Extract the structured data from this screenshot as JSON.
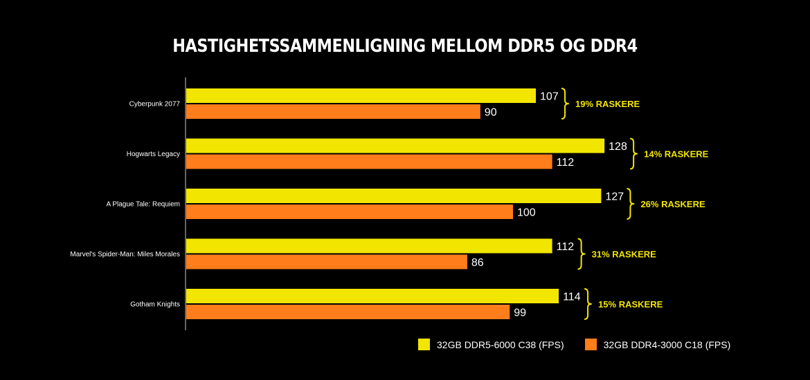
{
  "chart_data": {
    "type": "bar",
    "orientation": "horizontal",
    "title": "HASTIGHETSSAMMENLIGNING MELLOM DDR5 OG DDR4",
    "categories": [
      "Cyberpunk 2077",
      "Hogwarts Legacy",
      "A Plague Tale: Requiem",
      "Marvel's Spider-Man: Miles Morales",
      "Gotham Knights"
    ],
    "series": [
      {
        "name": "32GB DDR5-6000 C38 (FPS)",
        "color": "#f2e600",
        "values": [
          107,
          128,
          127,
          112,
          114
        ]
      },
      {
        "name": "32GB DDR4-3000 C18 (FPS)",
        "color": "#ff7d1a",
        "values": [
          90,
          112,
          100,
          86,
          99
        ]
      }
    ],
    "annotations": [
      "19% RASKERE",
      "14% RASKERE",
      "26% RASKERE",
      "31% RASKERE",
      "15% RASKERE"
    ],
    "xlim": [
      0,
      140
    ],
    "grid": false,
    "legend_position": "bottom-right"
  }
}
